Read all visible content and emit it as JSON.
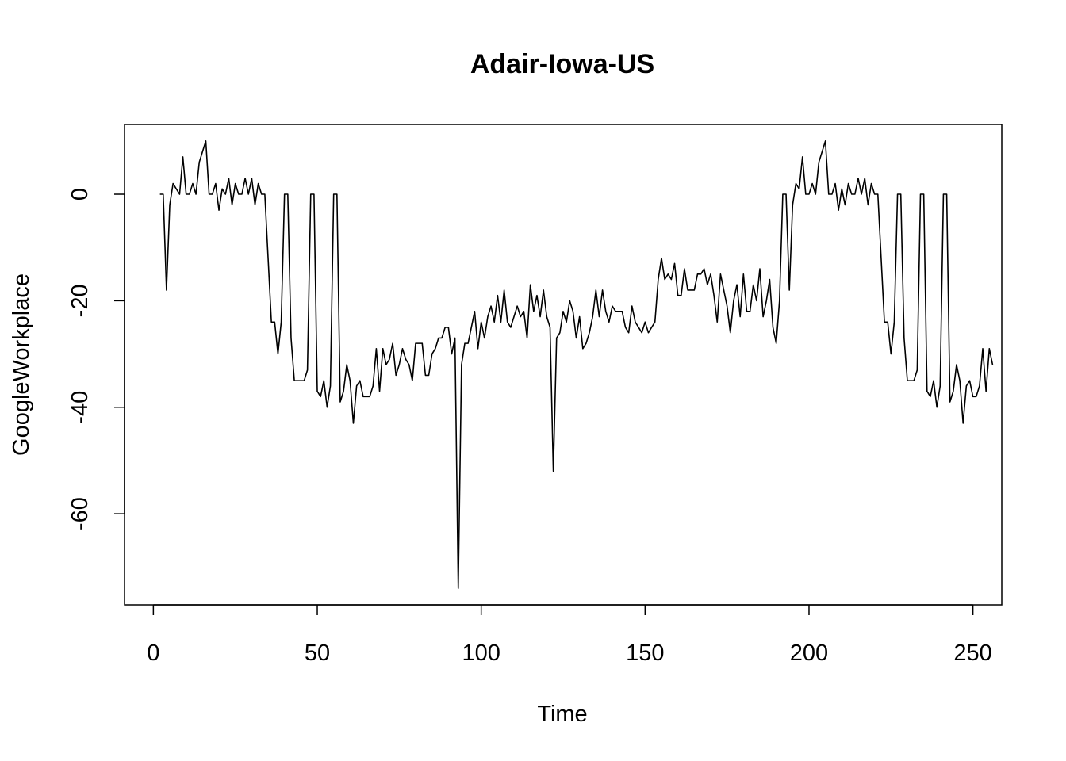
{
  "chart_data": {
    "type": "line",
    "title": "Adair-Iowa-US",
    "xlabel": "Time",
    "ylabel": "GoogleWorkplace",
    "xlim": [
      -8.8,
      258.8
    ],
    "ylim": [
      -77.1,
      13.1
    ],
    "xticks": [
      0,
      50,
      100,
      150,
      200,
      250
    ],
    "yticks": [
      0,
      -20,
      -40,
      -60
    ],
    "grid": false,
    "legend": "none",
    "line_color": "#000000",
    "series": [
      {
        "x_start": 2,
        "values": [
          0,
          0,
          -18,
          -2,
          2,
          1,
          0,
          7,
          0,
          0,
          2,
          0,
          6,
          8,
          10,
          0,
          0,
          2,
          -3,
          1,
          0,
          3,
          -2,
          2,
          0,
          0,
          3,
          0,
          3,
          -2,
          2,
          0,
          0,
          -12,
          -24,
          -24,
          -30,
          -24,
          0,
          0,
          -27,
          -35,
          -35,
          -35,
          -35,
          -33,
          0,
          0,
          -37,
          -38,
          -35,
          -40,
          -36,
          0,
          0,
          -39,
          -37,
          -32,
          -35,
          -43,
          -36,
          -35,
          -38,
          -38,
          -38,
          -36,
          -29,
          -37,
          -29,
          -32,
          -31,
          -28,
          -34,
          -32,
          -29,
          -31,
          -32,
          -35,
          -28,
          -28,
          -28,
          -34,
          -34,
          -30,
          -29,
          -27,
          -27,
          -25,
          -25,
          -30,
          -27,
          -74,
          -32,
          -28,
          -28,
          -25,
          -22,
          -29,
          -24,
          -27,
          -23,
          -21,
          -24,
          -19,
          -24,
          -18,
          -24,
          -25,
          -23,
          -21,
          -23,
          -22,
          -27,
          -17,
          -22,
          -19,
          -23,
          -18,
          -23,
          -25,
          -52,
          -27,
          -26,
          -22,
          -24,
          -20,
          -22,
          -27,
          -23,
          -29,
          -28,
          -26,
          -23,
          -18,
          -23,
          -18,
          -22,
          -24,
          -21,
          -22,
          -22,
          -22,
          -25,
          -26,
          -21,
          -24,
          -25,
          -26,
          -24,
          -26,
          -25,
          -24,
          -16,
          -12,
          -16,
          -15,
          -16,
          -13,
          -19,
          -19,
          -14,
          -18,
          -18,
          -18,
          -15,
          -15,
          -14,
          -17,
          -15,
          -19,
          -24,
          -15,
          -18,
          -21,
          -26,
          -20,
          -17,
          -23,
          -15,
          -22,
          -22,
          -17,
          -20,
          -14,
          -23,
          -20,
          -16,
          -25,
          -28,
          -20,
          0,
          0,
          -18,
          -2,
          2,
          1,
          7,
          0,
          0,
          2,
          0,
          6,
          8,
          10,
          0,
          0,
          2,
          -3,
          1,
          -2,
          2,
          0,
          0,
          3,
          0,
          3,
          -2,
          2,
          0,
          0,
          -12,
          -24,
          -24,
          -30,
          -24,
          0,
          0,
          -27,
          -35,
          -35,
          -35,
          -33,
          0,
          0,
          -37,
          -38,
          -35,
          -40,
          -36,
          0,
          0,
          -39,
          -37,
          -32,
          -35,
          -43,
          -36,
          -35,
          -38,
          -38,
          -36,
          -29,
          -37,
          -29,
          -32
        ]
      }
    ]
  }
}
